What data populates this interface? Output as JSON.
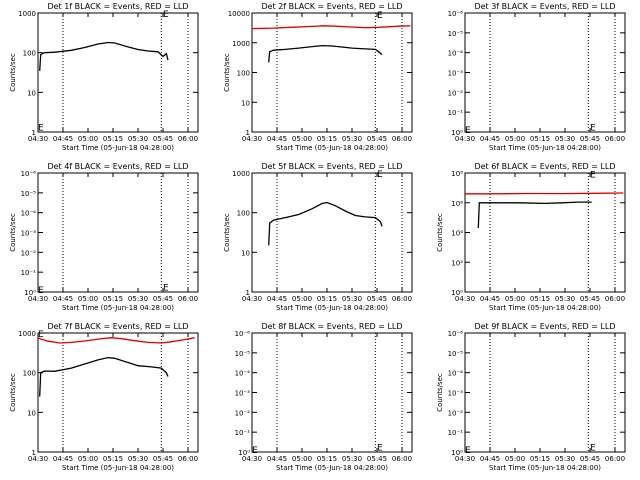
{
  "figure": {
    "background": "#ffffff",
    "axis_color": "#000000",
    "events_color": "#000000",
    "lld_color": "#dd0000"
  },
  "chart_data": [
    {
      "type": "line",
      "title": "Det 1f BLACK = Events, RED = LLD",
      "xlabel": "Start Time (05-Jun-18 04:28:00)",
      "ylabel": "Counts/sec",
      "x_ticks": [
        "04:30",
        "04:45",
        "05:00",
        "05:15",
        "05:30",
        "05:45",
        "06:00"
      ],
      "x_range_min": [
        2,
        98
      ],
      "ylim": [
        1,
        1000
      ],
      "y_ticks": [
        "1",
        "10",
        "100",
        "1000"
      ],
      "yscale": "log",
      "vlines_min": [
        17,
        76,
        92
      ],
      "e_markers": [
        {
          "x_min": 2,
          "y": 1.3
        },
        {
          "x_min": 77,
          "y": 950
        }
      ],
      "series": [
        {
          "role": "events",
          "values": [
            [
              3,
              35
            ],
            [
              3.6,
              90
            ],
            [
              6,
              100
            ],
            [
              12,
              103
            ],
            [
              22,
              115
            ],
            [
              30,
              135
            ],
            [
              38,
              165
            ],
            [
              44,
              180
            ],
            [
              48,
              175
            ],
            [
              56,
              140
            ],
            [
              62,
              120
            ],
            [
              68,
              110
            ],
            [
              74,
              105
            ],
            [
              77,
              80
            ],
            [
              79,
              95
            ],
            [
              80,
              65
            ]
          ]
        }
      ]
    },
    {
      "type": "line",
      "title": "Det 2f BLACK = Events, RED = LLD",
      "xlabel": "Start Time (05-Jun-18 04:28:00)",
      "ylabel": "Counts/sec",
      "x_ticks": [
        "04:30",
        "04:45",
        "05:00",
        "05:15",
        "05:30",
        "05:45",
        "06:00"
      ],
      "x_range_min": [
        2,
        98
      ],
      "ylim": [
        1,
        10000
      ],
      "y_ticks": [
        "1",
        "10",
        "100",
        "1000",
        "10000"
      ],
      "yscale": "log",
      "vlines_min": [
        17,
        76,
        92
      ],
      "e_markers": [
        {
          "x_min": 77,
          "y": 8500
        }
      ],
      "series": [
        {
          "role": "lld",
          "values": [
            [
              2,
              3000
            ],
            [
              15,
              3100
            ],
            [
              25,
              3300
            ],
            [
              35,
              3500
            ],
            [
              45,
              3700
            ],
            [
              52,
              3600
            ],
            [
              60,
              3400
            ],
            [
              70,
              3200
            ],
            [
              78,
              3300
            ],
            [
              90,
              3600
            ],
            [
              97,
              3700
            ]
          ]
        },
        {
          "role": "events",
          "values": [
            [
              12,
              220
            ],
            [
              12.6,
              500
            ],
            [
              15,
              560
            ],
            [
              22,
              600
            ],
            [
              30,
              660
            ],
            [
              38,
              740
            ],
            [
              44,
              800
            ],
            [
              50,
              780
            ],
            [
              56,
              720
            ],
            [
              62,
              660
            ],
            [
              70,
              620
            ],
            [
              76,
              600
            ],
            [
              78,
              500
            ],
            [
              80,
              400
            ]
          ]
        }
      ]
    },
    {
      "type": "line",
      "title": "Det 3f BLACK = Events, RED = LLD",
      "xlabel": "Start Time (05-Jun-18 04:28:00)",
      "ylabel": "",
      "x_ticks": [
        "04:30",
        "04:45",
        "05:00",
        "05:15",
        "05:30",
        "05:45",
        "06:00"
      ],
      "x_range_min": [
        2,
        98
      ],
      "ylim": [
        1,
        1e-06
      ],
      "y_ticks": [
        "10⁰",
        "10⁻¹",
        "10⁻²",
        "10⁻³",
        "10⁻⁴",
        "10⁻⁵",
        "10⁻⁶"
      ],
      "yscale": "log",
      "vlines_min": [
        17,
        76,
        92
      ],
      "e_markers": [
        {
          "x_min": 2,
          "y": 0.8
        },
        {
          "x_min": 77,
          "y": 0.6
        }
      ],
      "series": []
    },
    {
      "type": "line",
      "title": "Det 4f BLACK = Events, RED = LLD",
      "xlabel": "Start Time (05-Jun-18 04:28:00)",
      "ylabel": "Counts/sec",
      "x_ticks": [
        "04:30",
        "04:45",
        "05:00",
        "05:15",
        "05:30",
        "05:45",
        "06:00"
      ],
      "x_range_min": [
        2,
        98
      ],
      "ylim": [
        1,
        1e-06
      ],
      "y_ticks": [
        "10⁰",
        "10⁻¹",
        "10⁻²",
        "10⁻³",
        "10⁻⁴",
        "10⁻⁵",
        "10⁻⁶"
      ],
      "yscale": "log",
      "vlines_min": [
        17,
        76,
        92
      ],
      "e_markers": [
        {
          "x_min": 2,
          "y": 0.8
        },
        {
          "x_min": 77,
          "y": 0.6
        }
      ],
      "series": []
    },
    {
      "type": "line",
      "title": "Det 5f BLACK = Events, RED = LLD",
      "xlabel": "Start Time (05-Jun-18 04:28:00)",
      "ylabel": "Counts/sec",
      "x_ticks": [
        "04:30",
        "04:45",
        "05:00",
        "05:15",
        "05:30",
        "05:45",
        "06:00"
      ],
      "x_range_min": [
        2,
        98
      ],
      "ylim": [
        1,
        1000
      ],
      "y_ticks": [
        "1",
        "10",
        "100",
        "1000"
      ],
      "yscale": "log",
      "vlines_min": [
        17,
        76,
        92
      ],
      "e_markers": [
        {
          "x_min": 77,
          "y": 950
        }
      ],
      "series": [
        {
          "role": "events",
          "values": [
            [
              12,
              15
            ],
            [
              12.6,
              55
            ],
            [
              15,
              65
            ],
            [
              22,
              75
            ],
            [
              30,
              90
            ],
            [
              38,
              125
            ],
            [
              44,
              170
            ],
            [
              47,
              180
            ],
            [
              52,
              150
            ],
            [
              58,
              110
            ],
            [
              64,
              85
            ],
            [
              70,
              78
            ],
            [
              76,
              75
            ],
            [
              79,
              60
            ],
            [
              80,
              45
            ]
          ]
        }
      ]
    },
    {
      "type": "line",
      "title": "Det 6f BLACK = Events, RED = LLD",
      "xlabel": "Start Time (05-Jun-18 04:28:00)",
      "ylabel": "Counts/sec",
      "x_ticks": [
        "04:30",
        "04:45",
        "05:00",
        "05:15",
        "05:30",
        "05:45",
        "06:00"
      ],
      "x_range_min": [
        2,
        98
      ],
      "ylim": [
        1,
        100000000.0
      ],
      "y_ticks": [
        "10⁰",
        "10²",
        "10⁴",
        "10⁶",
        "10⁸"
      ],
      "yscale": "log",
      "vlines_min": [
        17,
        76,
        92
      ],
      "e_markers": [
        {
          "x_min": 77,
          "y": 80000000.0
        }
      ],
      "series": [
        {
          "role": "lld",
          "values": [
            [
              2,
              4000000.0
            ],
            [
              20,
              4000000.0
            ],
            [
              40,
              4200000.0
            ],
            [
              60,
              4100000.0
            ],
            [
              80,
              4300000.0
            ],
            [
              97,
              4500000.0
            ]
          ]
        },
        {
          "role": "events",
          "values": [
            [
              10,
              20000.0
            ],
            [
              10.6,
              1000000.0
            ],
            [
              20,
              1000000.0
            ],
            [
              35,
              1000000.0
            ],
            [
              50,
              900000.0
            ],
            [
              60,
              1000000.0
            ],
            [
              70,
              1100000.0
            ],
            [
              78,
              1100000.0
            ]
          ]
        }
      ]
    },
    {
      "type": "line",
      "title": "Det 7f BLACK = Events, RED = LLD",
      "xlabel": "Start Time (05-Jun-18 04:28:00)",
      "ylabel": "Counts/sec",
      "x_ticks": [
        "04:30",
        "04:45",
        "05:00",
        "05:15",
        "05:30",
        "05:45",
        "06:00"
      ],
      "x_range_min": [
        2,
        98
      ],
      "ylim": [
        1,
        1000
      ],
      "y_ticks": [
        "1",
        "10",
        "100",
        "1000"
      ],
      "yscale": "log",
      "vlines_min": [
        17,
        76,
        92
      ],
      "e_markers": [
        {
          "x_min": 2,
          "y": 950
        }
      ],
      "series": [
        {
          "role": "lld",
          "values": [
            [
              2,
              750
            ],
            [
              8,
              620
            ],
            [
              15,
              560
            ],
            [
              22,
              580
            ],
            [
              30,
              630
            ],
            [
              38,
              700
            ],
            [
              46,
              760
            ],
            [
              52,
              720
            ],
            [
              60,
              640
            ],
            [
              68,
              580
            ],
            [
              76,
              560
            ],
            [
              82,
              600
            ],
            [
              90,
              680
            ],
            [
              96,
              760
            ]
          ]
        },
        {
          "role": "events",
          "values": [
            [
              3,
              25
            ],
            [
              3.6,
              100
            ],
            [
              6,
              110
            ],
            [
              12,
              108
            ],
            [
              22,
              130
            ],
            [
              30,
              165
            ],
            [
              38,
              210
            ],
            [
              44,
              240
            ],
            [
              48,
              230
            ],
            [
              56,
              180
            ],
            [
              62,
              150
            ],
            [
              70,
              140
            ],
            [
              76,
              130
            ],
            [
              79,
              100
            ],
            [
              80,
              80
            ]
          ]
        }
      ]
    },
    {
      "type": "line",
      "title": "Det 8f BLACK = Events, RED = LLD",
      "xlabel": "Start Time (05-Jun-18 04:28:00)",
      "ylabel": "",
      "x_ticks": [
        "04:30",
        "04:45",
        "05:00",
        "05:15",
        "05:30",
        "05:45",
        "06:00"
      ],
      "x_range_min": [
        2,
        98
      ],
      "ylim": [
        1,
        1e-06
      ],
      "y_ticks": [
        "10⁰",
        "10⁻¹",
        "10⁻²",
        "10⁻³",
        "10⁻⁴",
        "10⁻⁵",
        "10⁻⁶"
      ],
      "yscale": "log",
      "vlines_min": [
        17,
        76,
        92
      ],
      "e_markers": [
        {
          "x_min": 2,
          "y": 0.8
        },
        {
          "x_min": 77,
          "y": 0.6
        }
      ],
      "series": []
    },
    {
      "type": "line",
      "title": "Det 9f BLACK = Events, RED = LLD",
      "xlabel": "Start Time (05-Jun-18 04:28:00)",
      "ylabel": "Counts/sec",
      "x_ticks": [
        "04:30",
        "04:45",
        "05:00",
        "05:15",
        "05:30",
        "05:45",
        "06:00"
      ],
      "x_range_min": [
        2,
        98
      ],
      "ylim": [
        1,
        1e-06
      ],
      "y_ticks": [
        "10⁰",
        "10⁻¹",
        "10⁻²",
        "10⁻³",
        "10⁻⁴",
        "10⁻⁵",
        "10⁻⁶"
      ],
      "yscale": "log",
      "vlines_min": [
        17,
        76,
        92
      ],
      "e_markers": [
        {
          "x_min": 2,
          "y": 0.8
        },
        {
          "x_min": 77,
          "y": 0.6
        }
      ],
      "series": []
    }
  ]
}
